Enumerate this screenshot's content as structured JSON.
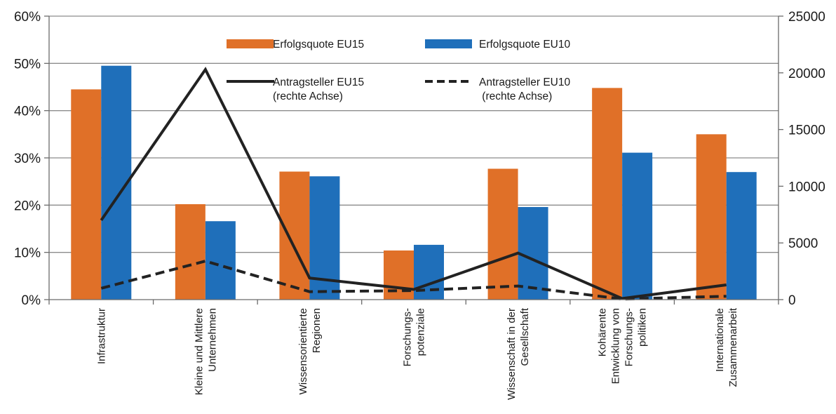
{
  "chart_data": {
    "type": "bar",
    "categories": [
      [
        "Infrastruktur"
      ],
      [
        "Kleine und Mittlere",
        "Unternehmen"
      ],
      [
        "Wissensorientierte",
        "Regionen"
      ],
      [
        "Forschungs-",
        "potenziale"
      ],
      [
        "Wissenschaft in der",
        "Gesellschaft"
      ],
      [
        "Kohärente",
        "Entwicklung von",
        "Forschungs-",
        "politiken"
      ],
      [
        "Internationale",
        "Zusammenarbeit"
      ]
    ],
    "bar_series": [
      {
        "name": "Erfolgsquote EU15",
        "color": "#e07028",
        "values": [
          44.5,
          20.2,
          27.1,
          10.4,
          27.7,
          44.8,
          35.0
        ]
      },
      {
        "name": "Erfolgsquote EU10",
        "color": "#1f6fba",
        "values": [
          49.5,
          16.6,
          26.1,
          11.6,
          19.6,
          31.1,
          27.0
        ]
      }
    ],
    "line_series": [
      {
        "name": [
          "Antragsteller EU15",
          "(rechte Achse)"
        ],
        "style": "solid",
        "color": "#222222",
        "values": [
          7000,
          20300,
          1900,
          900,
          4100,
          100,
          1300
        ]
      },
      {
        "name": [
          "Antragsteller EU10",
          " (rechte Achse)"
        ],
        "style": "dashed",
        "color": "#222222",
        "values": [
          1000,
          3400,
          700,
          800,
          1200,
          50,
          300
        ]
      }
    ],
    "y_left": {
      "ticks": [
        "0%",
        "10%",
        "20%",
        "30%",
        "40%",
        "50%",
        "60%"
      ],
      "min": 0,
      "max": 60
    },
    "y_right": {
      "ticks": [
        "0",
        "5000",
        "10000",
        "15000",
        "20000",
        "25000"
      ],
      "min": 0,
      "max": 25000
    },
    "grid": true,
    "legend": "top-center"
  }
}
